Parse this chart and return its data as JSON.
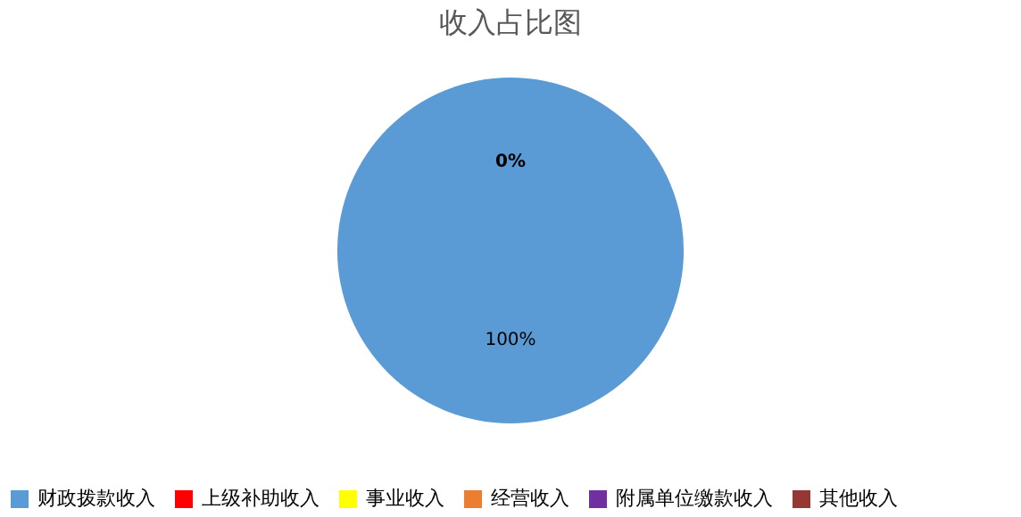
{
  "chart_data": {
    "type": "pie",
    "title": "收入占比图",
    "categories": [
      "财政拨款收入",
      "上级补助收入",
      "事业收入",
      "经营收入",
      "附属单位缴款收入",
      "其他收入"
    ],
    "values": [
      100,
      0,
      0,
      0,
      0,
      0
    ],
    "colors": [
      "#5b9bd5",
      "#ff0000",
      "#ffff00",
      "#ed7d31",
      "#7030a0",
      "#953735"
    ],
    "value_labels": [
      "100%",
      "0%",
      null,
      null,
      null,
      null
    ],
    "legend": "bottom"
  }
}
